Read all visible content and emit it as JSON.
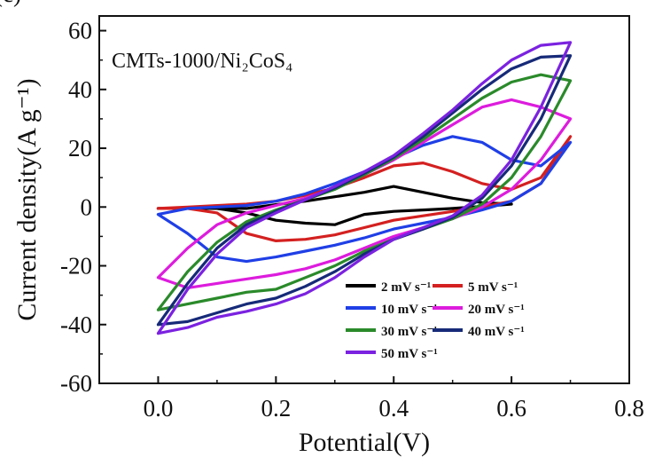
{
  "panel_label": "(c)",
  "chart_data": {
    "type": "line",
    "title": "",
    "annotation": "CMTs-1000/Ni₂CoS₄",
    "xlabel": "Potential(V)",
    "ylabel": "Current density(A g⁻¹)",
    "xlim": [
      -0.1,
      0.8
    ],
    "ylim": [
      -60,
      65
    ],
    "xticks": [
      0.0,
      0.2,
      0.4,
      0.6,
      0.8
    ],
    "xtick_labels": [
      "0.0",
      "0.2",
      "0.4",
      "0.6",
      "0.8"
    ],
    "yticks": [
      -60,
      -40,
      -20,
      0,
      20,
      40,
      60
    ],
    "ytick_labels": [
      "-60",
      "-40",
      "-20",
      "0",
      "20",
      "40",
      "60"
    ],
    "grid": false,
    "legend_position": "bottom-right",
    "series": [
      {
        "name": "2 mV s⁻¹",
        "color": "#000000",
        "x": [
          0.0,
          0.05,
          0.1,
          0.15,
          0.2,
          0.25,
          0.3,
          0.35,
          0.4,
          0.45,
          0.5,
          0.55,
          0.6,
          0.6,
          0.55,
          0.5,
          0.45,
          0.4,
          0.35,
          0.3,
          0.25,
          0.2,
          0.15,
          0.1,
          0.05,
          0.0
        ],
        "y": [
          -0.5,
          -0.5,
          -0.5,
          -0.5,
          0.8,
          2.0,
          3.5,
          5.0,
          7.0,
          5.0,
          3.0,
          1.5,
          1.0,
          1.0,
          0.2,
          -0.5,
          -1.0,
          -1.5,
          -2.5,
          -6.0,
          -5.5,
          -4.5,
          -2.0,
          -0.5,
          -0.5,
          -0.5
        ]
      },
      {
        "name": "5 mV s⁻¹",
        "color": "#d42020",
        "x": [
          0.0,
          0.05,
          0.1,
          0.15,
          0.2,
          0.25,
          0.3,
          0.35,
          0.4,
          0.45,
          0.5,
          0.55,
          0.6,
          0.65,
          0.7,
          0.7,
          0.65,
          0.6,
          0.55,
          0.5,
          0.45,
          0.4,
          0.35,
          0.3,
          0.25,
          0.2,
          0.15,
          0.1,
          0.05,
          0.0
        ],
        "y": [
          -0.5,
          0.0,
          0.5,
          1.0,
          2.0,
          4.0,
          6.5,
          10.0,
          14.0,
          15.0,
          12.0,
          8.0,
          6.0,
          10.0,
          24.0,
          24.0,
          8.0,
          2.0,
          0.0,
          -1.5,
          -3.0,
          -4.5,
          -7.0,
          -9.5,
          -11.0,
          -11.5,
          -9.0,
          -2.0,
          -0.5,
          -0.5
        ]
      },
      {
        "name": "10 mV s⁻¹",
        "color": "#1f3fe6",
        "x": [
          0.0,
          0.05,
          0.1,
          0.15,
          0.2,
          0.25,
          0.3,
          0.35,
          0.4,
          0.45,
          0.5,
          0.55,
          0.6,
          0.65,
          0.7,
          0.7,
          0.65,
          0.6,
          0.55,
          0.5,
          0.45,
          0.4,
          0.35,
          0.3,
          0.25,
          0.2,
          0.15,
          0.1,
          0.05,
          0.0
        ],
        "y": [
          -2.5,
          -0.5,
          0.0,
          0.5,
          2.0,
          4.5,
          8.0,
          12.0,
          16.5,
          21.0,
          24.0,
          22.0,
          16.0,
          14.0,
          22.0,
          22.0,
          8.0,
          2.0,
          -1.0,
          -3.5,
          -5.5,
          -7.5,
          -10.5,
          -13.0,
          -15.0,
          -17.0,
          -18.5,
          -17.0,
          -9.0,
          -2.5
        ]
      },
      {
        "name": "20 mV s⁻¹",
        "color": "#dd1cdd",
        "x": [
          0.0,
          0.05,
          0.1,
          0.15,
          0.2,
          0.25,
          0.3,
          0.35,
          0.4,
          0.45,
          0.5,
          0.55,
          0.6,
          0.65,
          0.7,
          0.7,
          0.65,
          0.6,
          0.55,
          0.5,
          0.45,
          0.4,
          0.35,
          0.3,
          0.25,
          0.2,
          0.15,
          0.1,
          0.05,
          0.0
        ],
        "y": [
          -24.0,
          -14.0,
          -6.0,
          -2.0,
          0.5,
          3.0,
          6.5,
          11.0,
          16.0,
          22.0,
          28.0,
          34.0,
          36.5,
          34.0,
          30.0,
          30.0,
          16.0,
          6.0,
          0.0,
          -4.0,
          -7.0,
          -10.0,
          -14.0,
          -18.0,
          -21.0,
          -23.0,
          -24.5,
          -26.0,
          -27.5,
          -24.0
        ]
      },
      {
        "name": "30 mV s⁻¹",
        "color": "#2a8a2a",
        "x": [
          0.0,
          0.05,
          0.1,
          0.15,
          0.2,
          0.25,
          0.3,
          0.35,
          0.4,
          0.45,
          0.5,
          0.55,
          0.6,
          0.65,
          0.7,
          0.7,
          0.65,
          0.6,
          0.55,
          0.5,
          0.45,
          0.4,
          0.35,
          0.3,
          0.25,
          0.2,
          0.15,
          0.1,
          0.05,
          0.0
        ],
        "y": [
          -35.0,
          -22.0,
          -12.0,
          -5.0,
          -1.0,
          2.5,
          6.0,
          11.0,
          16.5,
          23.0,
          30.0,
          37.0,
          42.5,
          45.0,
          43.0,
          43.0,
          24.0,
          10.0,
          1.0,
          -4.0,
          -7.5,
          -11.0,
          -15.0,
          -20.0,
          -24.0,
          -28.0,
          -29.0,
          -31.0,
          -33.0,
          -35.0
        ]
      },
      {
        "name": "40 mV s⁻¹",
        "color": "#162a78",
        "x": [
          0.0,
          0.05,
          0.1,
          0.15,
          0.2,
          0.25,
          0.3,
          0.35,
          0.4,
          0.45,
          0.5,
          0.55,
          0.6,
          0.65,
          0.7,
          0.7,
          0.65,
          0.6,
          0.55,
          0.5,
          0.45,
          0.4,
          0.35,
          0.3,
          0.25,
          0.2,
          0.15,
          0.1,
          0.05,
          0.0
        ],
        "y": [
          -40.0,
          -26.0,
          -14.0,
          -6.0,
          -1.5,
          2.5,
          6.5,
          11.5,
          17.0,
          24.0,
          32.0,
          40.0,
          47.0,
          51.0,
          51.5,
          51.5,
          30.0,
          14.0,
          3.0,
          -3.5,
          -7.5,
          -11.0,
          -16.0,
          -22.0,
          -27.0,
          -31.0,
          -33.0,
          -36.0,
          -39.0,
          -40.0
        ]
      },
      {
        "name": "50 mV s⁻¹",
        "color": "#7b22e0",
        "x": [
          0.0,
          0.05,
          0.1,
          0.15,
          0.2,
          0.25,
          0.3,
          0.35,
          0.4,
          0.45,
          0.5,
          0.55,
          0.6,
          0.65,
          0.7,
          0.7,
          0.65,
          0.6,
          0.55,
          0.5,
          0.45,
          0.4,
          0.35,
          0.3,
          0.25,
          0.2,
          0.15,
          0.1,
          0.05,
          0.0
        ],
        "y": [
          -43.0,
          -28.0,
          -16.0,
          -7.0,
          -2.0,
          2.5,
          7.0,
          12.0,
          17.5,
          25.0,
          33.0,
          42.0,
          50.0,
          55.0,
          56.0,
          56.0,
          34.0,
          16.0,
          4.0,
          -3.0,
          -7.0,
          -11.0,
          -17.0,
          -24.0,
          -29.5,
          -33.0,
          -35.5,
          -37.5,
          -41.0,
          -43.0
        ]
      }
    ]
  }
}
